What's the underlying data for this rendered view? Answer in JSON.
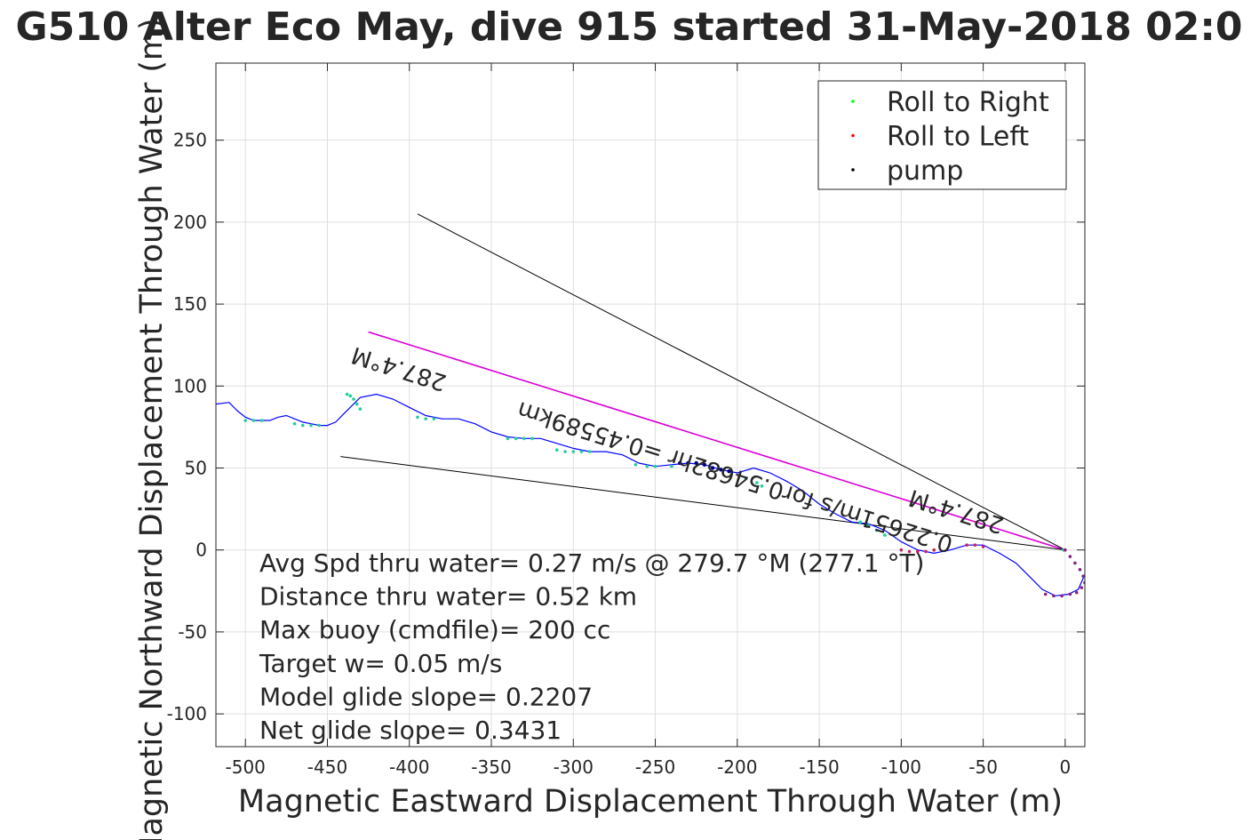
{
  "chart_data": {
    "type": "scatter",
    "title": "G510 Alter Eco May, dive 915 started 31-May-2018 02:0",
    "xlabel": "Magnetic Eastward Displacement Through Water (m)",
    "ylabel": "Magnetic Northward Displacement Through Water (m)",
    "xlim": [
      -518,
      12
    ],
    "ylim": [
      -120,
      297
    ],
    "xticks": [
      -500,
      -450,
      -400,
      -350,
      -300,
      -250,
      -200,
      -150,
      -100,
      -50,
      0
    ],
    "xtick_labels": [
      "-500",
      "-450",
      "-400",
      "-350",
      "-300",
      "-250",
      "-200",
      "-150",
      "-100",
      "-50",
      "0"
    ],
    "yticks": [
      -100,
      -50,
      0,
      50,
      100,
      150,
      200,
      250
    ],
    "ytick_labels": [
      "-100",
      "-50",
      "0",
      "50",
      "100",
      "150",
      "200",
      "250"
    ],
    "grid": true,
    "legend_position": "top-right",
    "legend": [
      {
        "label": "Roll to Right",
        "color": "#00ff00"
      },
      {
        "label": "Roll to Left",
        "color": "#ff0000"
      },
      {
        "label": "pump",
        "color": "#000000"
      }
    ],
    "track": {
      "name": "glider track",
      "color": "#0000ff",
      "x": [
        12,
        8,
        2,
        -6,
        -14,
        -22,
        -30,
        -40,
        -50,
        -60,
        -70,
        -80,
        -90,
        -100,
        -110,
        -120,
        -130,
        -140,
        -150,
        -160,
        -170,
        -180,
        -190,
        -200,
        -210,
        -220,
        -230,
        -240,
        -250,
        -260,
        -270,
        -280,
        -290,
        -300,
        -310,
        -320,
        -330,
        -340,
        -350,
        -360,
        -370,
        -380,
        -390,
        -400,
        -410,
        -420,
        -430,
        -440,
        -445,
        -450,
        -455,
        -460,
        -465,
        -470,
        -475,
        -480,
        -485,
        -490,
        -495,
        -500,
        -505,
        -510,
        -518
      ],
      "y": [
        -15,
        -24,
        -27,
        -28,
        -24,
        -16,
        -8,
        -2,
        3,
        3,
        0,
        -2,
        0,
        5,
        12,
        16,
        17,
        22,
        28,
        36,
        42,
        47,
        50,
        47,
        49,
        52,
        53,
        52,
        51,
        53,
        58,
        60,
        60,
        62,
        65,
        68,
        68,
        69,
        72,
        77,
        80,
        80,
        82,
        87,
        92,
        95,
        93,
        83,
        78,
        76,
        76,
        77,
        78,
        80,
        82,
        81,
        79,
        79,
        79,
        81,
        85,
        90,
        89
      ]
    },
    "markers": {
      "roll_right": {
        "x": [
          -1,
          -110,
          -115,
          -120,
          -125,
          -185,
          -188,
          -195,
          -240,
          -250,
          -255,
          -262,
          -290,
          -295,
          -300,
          -305,
          -310,
          -325,
          -330,
          -335,
          -340,
          -385,
          -390,
          -395,
          -430,
          -432,
          -434,
          -436,
          -438,
          -455,
          -460,
          -465,
          -470,
          -490,
          -495,
          -500
        ],
        "y": [
          0,
          9,
          12,
          15,
          17,
          39,
          41,
          44,
          51,
          51,
          51,
          52,
          60,
          60,
          60,
          60,
          61,
          68,
          68,
          68,
          68,
          80,
          80,
          81,
          86,
          89,
          92,
          94,
          95,
          76,
          76,
          76,
          77,
          79,
          79,
          79
        ]
      },
      "roll_left": {
        "x": [
          -50,
          -55,
          -60,
          -80,
          -85,
          -90,
          -95,
          -100
        ],
        "y": [
          2,
          3,
          3,
          0,
          -1,
          -1,
          -1,
          0
        ]
      },
      "pump": {
        "x": [
          -205,
          -210,
          -215,
          -220,
          -225,
          -230,
          -235
        ],
        "y": [
          48,
          49,
          50,
          52,
          53,
          53,
          53
        ]
      },
      "dive_points": {
        "x": [
          0,
          3,
          6,
          9,
          11,
          12,
          10,
          7,
          3,
          -2,
          -7,
          -12
        ],
        "y": [
          0,
          -4,
          -8,
          -12,
          -16,
          -20,
          -23,
          -26,
          -27,
          -28,
          -28,
          -27
        ]
      }
    },
    "lines": [
      {
        "name": "heading-line",
        "color": "#cc00cc",
        "x": [
          0,
          -425
        ],
        "y": [
          0,
          133
        ]
      },
      {
        "name": "bound-line-upper",
        "color": "#000000",
        "x": [
          0,
          -395
        ],
        "y": [
          0,
          205
        ]
      },
      {
        "name": "bound-line-lower",
        "color": "#000000",
        "x": [
          0,
          -442
        ],
        "y": [
          0,
          57
        ]
      }
    ],
    "annotations": [
      {
        "text": "287.4°M",
        "x": -405,
        "y": 115,
        "rotate": 197.4
      },
      {
        "text": "287.4°M",
        "x": -65,
        "y": 28,
        "rotate": 197.4
      },
      {
        "text": "0.22651m/s for0.54682hr =0.45589km",
        "x": -200,
        "y": 49,
        "rotate": 197.4
      }
    ],
    "stats": [
      "Avg Spd thru water=  0.27 m/s @ 279.7 °M (277.1 °T)",
      "Distance thru water=  0.52 km",
      "Max buoy (cmdfile)= 200 cc",
      "Target w= 0.05 m/s",
      "Model glide slope= 0.2207",
      "Net glide slope= 0.3431"
    ]
  }
}
